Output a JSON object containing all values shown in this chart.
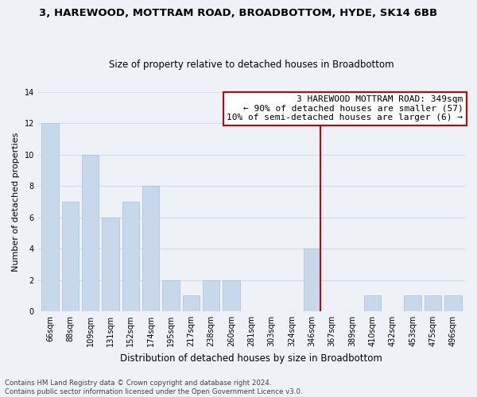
{
  "title": "3, HAREWOOD, MOTTRAM ROAD, BROADBOTTOM, HYDE, SK14 6BB",
  "subtitle": "Size of property relative to detached houses in Broadbottom",
  "xlabel": "Distribution of detached houses by size in Broadbottom",
  "ylabel": "Number of detached properties",
  "bin_labels": [
    "66sqm",
    "88sqm",
    "109sqm",
    "131sqm",
    "152sqm",
    "174sqm",
    "195sqm",
    "217sqm",
    "238sqm",
    "260sqm",
    "281sqm",
    "303sqm",
    "324sqm",
    "346sqm",
    "367sqm",
    "389sqm",
    "410sqm",
    "432sqm",
    "453sqm",
    "475sqm",
    "496sqm"
  ],
  "bar_heights": [
    12,
    7,
    10,
    6,
    7,
    8,
    2,
    1,
    2,
    2,
    0,
    0,
    0,
    4,
    0,
    0,
    1,
    0,
    1,
    1,
    1
  ],
  "bar_color": "#c8d8eb",
  "bar_edgecolor": "#a8c0d8",
  "vline_color": "#cc0000",
  "vline_index": 13,
  "ylim": [
    0,
    14
  ],
  "yticks": [
    0,
    2,
    4,
    6,
    8,
    10,
    12,
    14
  ],
  "annotation_text": "3 HAREWOOD MOTTRAM ROAD: 349sqm\n← 90% of detached houses are smaller (57)\n10% of semi-detached houses are larger (6) →",
  "annotation_box_color": "#ffffff",
  "annotation_box_edge": "#cc0000",
  "footer_text": "Contains HM Land Registry data © Crown copyright and database right 2024.\nContains public sector information licensed under the Open Government Licence v3.0.",
  "background_color": "#eef2f7",
  "grid_color": "#d0dcea",
  "title_fontsize": 9.5,
  "subtitle_fontsize": 8.5,
  "ylabel_fontsize": 8,
  "xlabel_fontsize": 8.5,
  "tick_fontsize": 7,
  "footer_fontsize": 6.2,
  "annot_fontsize": 8
}
